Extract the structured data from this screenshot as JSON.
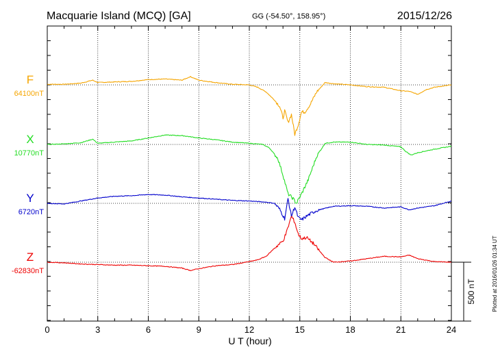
{
  "header": {
    "title": "Macquarie Island (MCQ)  [GA]",
    "coords": "GG (-54.50°, 158.95°)",
    "date": "2015/12/26"
  },
  "footer_note": "Plotted at 2016/01/26 01:34 UT",
  "scale_label": "500 nT",
  "chart_data": {
    "type": "line",
    "xlabel": "U T (hour)",
    "xlim": [
      0,
      24
    ],
    "xticks": [
      "0",
      "3",
      "6",
      "9",
      "12",
      "15",
      "18",
      "21",
      "24"
    ],
    "grid": true,
    "scale_nT": 500,
    "series": [
      {
        "name": "F",
        "baseline_label": "64100nT",
        "color": "#f5a500",
        "x": [
          0,
          1,
          2,
          2.7,
          3,
          4,
          5,
          6,
          7,
          8,
          8.5,
          9,
          10,
          11,
          12,
          12.5,
          13,
          13.5,
          13.8,
          14,
          14.1,
          14.3,
          14.5,
          14.7,
          14.9,
          15.1,
          15.3,
          15.6,
          16,
          16.5,
          17,
          18,
          19,
          20,
          21,
          21.5,
          22,
          22.5,
          23,
          24
        ],
        "y": [
          5,
          5,
          15,
          40,
          20,
          25,
          30,
          45,
          50,
          40,
          70,
          40,
          20,
          5,
          0,
          -20,
          -60,
          -130,
          -180,
          -280,
          -220,
          -320,
          -250,
          -420,
          -340,
          -230,
          -230,
          -170,
          -60,
          20,
          10,
          0,
          -15,
          -20,
          -50,
          -55,
          -80,
          -40,
          -20,
          0
        ]
      },
      {
        "name": "X",
        "baseline_label": "10770nT",
        "color": "#22dd22",
        "x": [
          0,
          1,
          2,
          2.7,
          3,
          4,
          5,
          6,
          7,
          8,
          9,
          10,
          11,
          12,
          12.8,
          13.2,
          13.7,
          14,
          14.3,
          14.6,
          14.8,
          15.1,
          15.5,
          16,
          16.5,
          17,
          18,
          19,
          20,
          21,
          21.3,
          21.6,
          22,
          23,
          24
        ],
        "y": [
          0,
          5,
          15,
          45,
          10,
          20,
          30,
          55,
          80,
          75,
          55,
          40,
          20,
          10,
          0,
          -30,
          -120,
          -260,
          -420,
          -460,
          -500,
          -420,
          -300,
          -100,
          10,
          20,
          20,
          0,
          -5,
          -20,
          -60,
          -90,
          -70,
          -40,
          -15
        ]
      },
      {
        "name": "Y",
        "baseline_label": "6720nT",
        "color": "#0000cc",
        "x": [
          0,
          1,
          2,
          3,
          4,
          5,
          6,
          7,
          8,
          9,
          10,
          11,
          12,
          13,
          13.5,
          13.8,
          14.1,
          14.3,
          14.5,
          14.7,
          14.9,
          15.1,
          15.5,
          16,
          17,
          18,
          19,
          20,
          21,
          21.5,
          22,
          23,
          24
        ],
        "y": [
          0,
          -5,
          20,
          45,
          60,
          65,
          75,
          70,
          55,
          45,
          35,
          25,
          20,
          10,
          0,
          -50,
          -130,
          40,
          -110,
          -30,
          -120,
          -140,
          -100,
          -60,
          -25,
          -20,
          -25,
          -40,
          -30,
          -55,
          -40,
          -20,
          20
        ]
      },
      {
        "name": "Z",
        "baseline_label": "-62830nT",
        "color": "#ee0000",
        "x": [
          0,
          1,
          2,
          3,
          4,
          5,
          6,
          7,
          8,
          8.5,
          9,
          10,
          11,
          12,
          12.5,
          13,
          13.5,
          14,
          14.2,
          14.5,
          14.7,
          14.9,
          15.1,
          15.4,
          15.8,
          16.2,
          16.5,
          17,
          18,
          19,
          20,
          21,
          21.5,
          22,
          23,
          24
        ],
        "y": [
          0,
          -5,
          -15,
          -20,
          -25,
          -25,
          -30,
          -35,
          -50,
          -70,
          -55,
          -30,
          -20,
          5,
          20,
          50,
          120,
          180,
          250,
          390,
          340,
          240,
          200,
          210,
          160,
          90,
          40,
          0,
          10,
          30,
          50,
          45,
          60,
          30,
          5,
          0
        ]
      }
    ]
  }
}
